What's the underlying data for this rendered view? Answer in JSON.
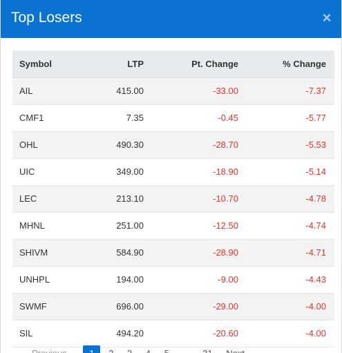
{
  "modal": {
    "title": "Top Losers",
    "close_label": "×",
    "accent_color": "#0a73d1",
    "negative_color": "#e8342e"
  },
  "table": {
    "headers": [
      "Symbol",
      "LTP",
      "Pt. Change",
      "% Change"
    ],
    "rows": [
      [
        "AIL",
        "415.00",
        "-33.00",
        "-7.37"
      ],
      [
        "CMF1",
        "7.35",
        "-0.45",
        "-5.77"
      ],
      [
        "OHL",
        "490.30",
        "-28.70",
        "-5.53"
      ],
      [
        "UIC",
        "349.00",
        "-18.90",
        "-5.14"
      ],
      [
        "LEC",
        "213.10",
        "-10.70",
        "-4.78"
      ],
      [
        "MHNL",
        "251.00",
        "-12.50",
        "-4.74"
      ],
      [
        "SHIVM",
        "584.90",
        "-28.90",
        "-4.71"
      ],
      [
        "UNHPL",
        "194.00",
        "-9.00",
        "-4.43"
      ],
      [
        "SWMF",
        "696.00",
        "-29.00",
        "-4.00"
      ],
      [
        "SIL",
        "494.20",
        "-20.60",
        "-4.00"
      ]
    ]
  },
  "pagination": {
    "previous": "Previous",
    "pages": [
      "1",
      "2",
      "3",
      "4",
      "5"
    ],
    "ellipsis": "…",
    "last": "31",
    "next": "Next",
    "current_page": "1"
  }
}
